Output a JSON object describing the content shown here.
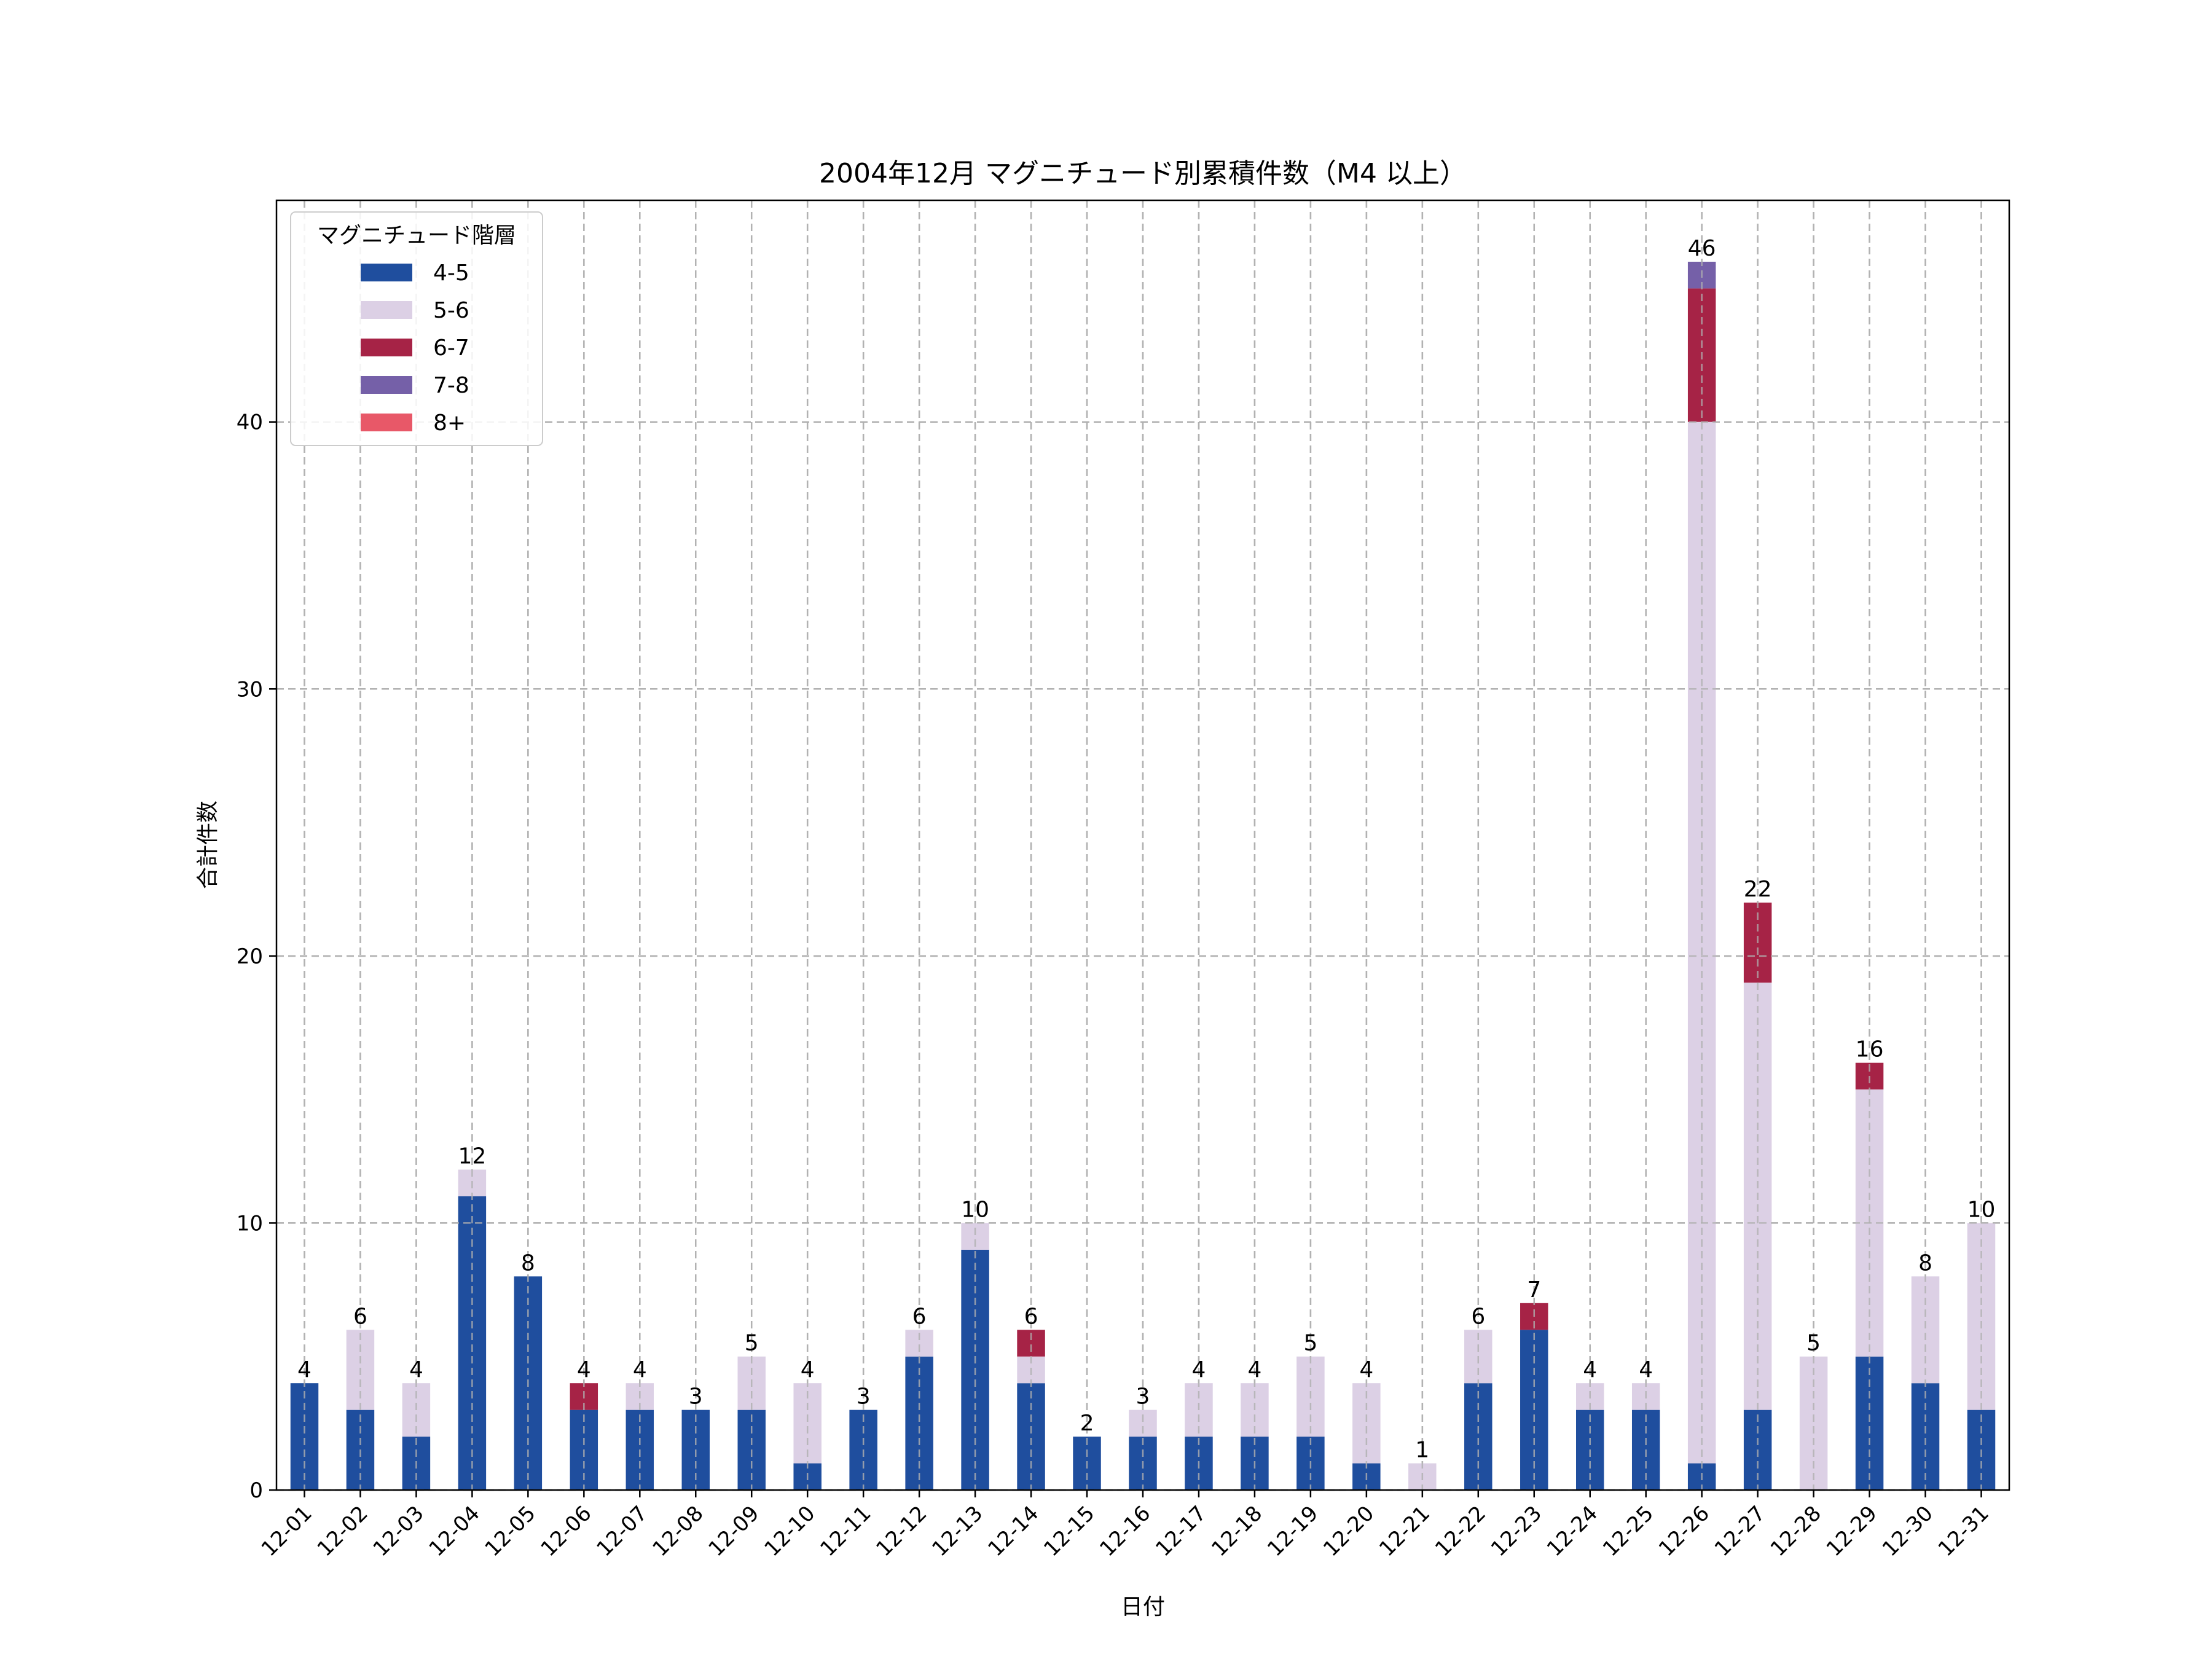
{
  "chart_data": {
    "type": "bar",
    "stacked": true,
    "title": "2004年12月 マグニチュード別累積件数（M4 以上）",
    "xlabel": "日付",
    "ylabel": "合計件数",
    "ylim": [
      0,
      48.3
    ],
    "yticks": [
      0,
      10,
      20,
      30,
      40
    ],
    "grid": true,
    "legend_title": "マグニチュード階層",
    "legend_position": "top-left",
    "categories": [
      "12-01",
      "12-02",
      "12-03",
      "12-04",
      "12-05",
      "12-06",
      "12-07",
      "12-08",
      "12-09",
      "12-10",
      "12-11",
      "12-12",
      "12-13",
      "12-14",
      "12-15",
      "12-16",
      "12-17",
      "12-18",
      "12-19",
      "12-20",
      "12-21",
      "12-22",
      "12-23",
      "12-24",
      "12-25",
      "12-26",
      "12-27",
      "12-28",
      "12-29",
      "12-30",
      "12-31"
    ],
    "series": [
      {
        "name": "4-5",
        "color": "#1f4e9e",
        "values": [
          4,
          3,
          2,
          11,
          8,
          3,
          3,
          3,
          3,
          1,
          3,
          5,
          9,
          4,
          2,
          2,
          2,
          2,
          2,
          1,
          0,
          4,
          6,
          3,
          3,
          1,
          3,
          0,
          5,
          4,
          3
        ]
      },
      {
        "name": "5-6",
        "color": "#dcd0e5",
        "values": [
          0,
          3,
          2,
          1,
          0,
          0,
          1,
          0,
          2,
          3,
          0,
          1,
          1,
          1,
          0,
          1,
          2,
          2,
          3,
          3,
          1,
          2,
          0,
          1,
          1,
          39,
          16,
          5,
          10,
          4,
          7
        ]
      },
      {
        "name": "6-7",
        "color": "#a62346",
        "values": [
          0,
          0,
          0,
          0,
          0,
          1,
          0,
          0,
          0,
          0,
          0,
          0,
          0,
          1,
          0,
          0,
          0,
          0,
          0,
          0,
          0,
          0,
          1,
          0,
          0,
          5,
          3,
          0,
          1,
          0,
          0
        ]
      },
      {
        "name": "7-8",
        "color": "#7560a8",
        "values": [
          0,
          0,
          0,
          0,
          0,
          0,
          0,
          0,
          0,
          0,
          0,
          0,
          0,
          0,
          0,
          0,
          0,
          0,
          0,
          0,
          0,
          0,
          0,
          0,
          0,
          1,
          0,
          0,
          0,
          0,
          0
        ]
      },
      {
        "name": "8+",
        "color": "#e85868",
        "values": [
          0,
          0,
          0,
          0,
          0,
          0,
          0,
          0,
          0,
          0,
          0,
          0,
          0,
          0,
          0,
          0,
          0,
          0,
          0,
          0,
          0,
          0,
          0,
          0,
          0,
          0,
          0,
          0,
          0,
          0,
          0
        ]
      }
    ],
    "totals": [
      4,
      6,
      4,
      12,
      8,
      4,
      4,
      3,
      5,
      4,
      3,
      6,
      10,
      6,
      2,
      3,
      4,
      4,
      5,
      4,
      1,
      6,
      7,
      4,
      4,
      46,
      22,
      5,
      16,
      8,
      10
    ]
  }
}
